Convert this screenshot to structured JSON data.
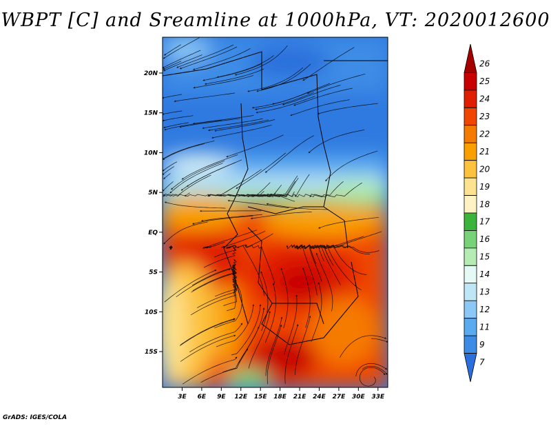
{
  "title": "WBPT [C] and Sreamline at 1000hPa, VT: 2020012600",
  "footer": "GrADS: IGES/COLA",
  "lat_ticks": [
    "20N",
    "15N",
    "10N",
    "5N",
    "EQ",
    "5S",
    "10S",
    "15S"
  ],
  "lat_values": [
    20,
    15,
    10,
    5,
    0,
    -5,
    -10,
    -15
  ],
  "lon_ticks": [
    "3E",
    "6E",
    "9E",
    "12E",
    "15E",
    "18E",
    "21E",
    "24E",
    "27E",
    "30E",
    "33E"
  ],
  "lon_values": [
    3,
    6,
    9,
    12,
    15,
    18,
    21,
    24,
    27,
    30,
    33
  ],
  "colorbar": {
    "labels": [
      "26",
      "25",
      "24",
      "23",
      "22",
      "21",
      "20",
      "19",
      "18",
      "17",
      "16",
      "15",
      "14",
      "13",
      "12",
      "11",
      "9",
      "7"
    ],
    "colors": [
      "#a50000",
      "#c80000",
      "#e01e00",
      "#f04600",
      "#f57a00",
      "#f99f00",
      "#fcc23d",
      "#fde38f",
      "#fff3c4",
      "#3cb43c",
      "#78d278",
      "#b4ecb4",
      "#e6faf5",
      "#bee6f5",
      "#8cc8f5",
      "#5aaaf0",
      "#3c8ce6",
      "#2a6fdc"
    ]
  },
  "chart_data": {
    "type": "heatmap",
    "variable": "WBPT [C]",
    "level": "1000hPa",
    "valid_time": "2020012600",
    "lon_range": [
      0,
      34.5
    ],
    "lat_range": [
      -19.5,
      24.5
    ],
    "value_range": [
      7,
      26
    ]
  }
}
